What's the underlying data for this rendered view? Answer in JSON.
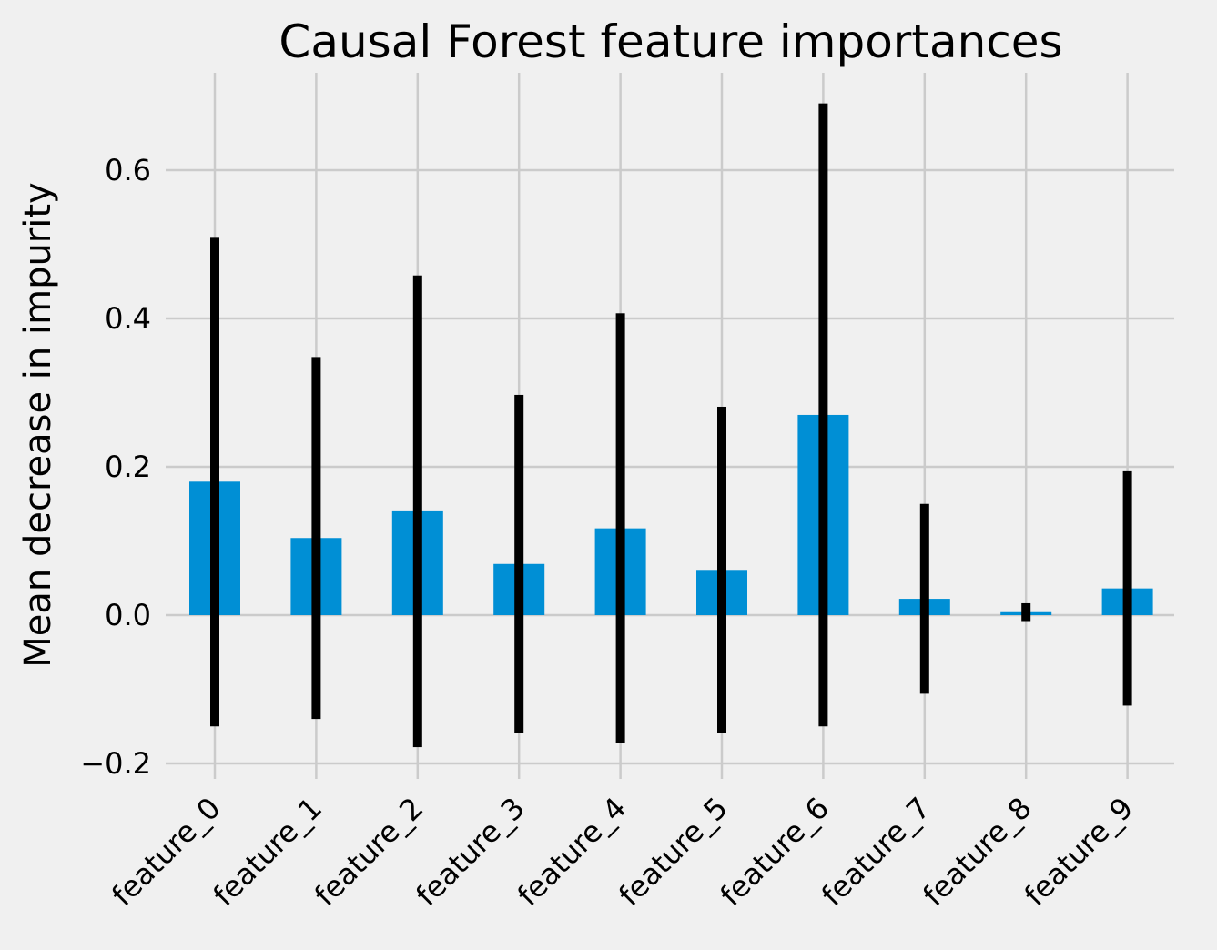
{
  "chart_data": {
    "type": "bar",
    "title": "Causal Forest feature importances",
    "xlabel": "",
    "ylabel": "Mean decrease in impurity",
    "categories": [
      "feature_0",
      "feature_1",
      "feature_2",
      "feature_3",
      "feature_4",
      "feature_5",
      "feature_6",
      "feature_7",
      "feature_8",
      "feature_9"
    ],
    "values": [
      0.18,
      0.104,
      0.14,
      0.069,
      0.117,
      0.061,
      0.27,
      0.022,
      0.004,
      0.036
    ],
    "error": [
      0.33,
      0.244,
      0.318,
      0.228,
      0.29,
      0.22,
      0.42,
      0.128,
      0.012,
      0.158
    ],
    "ylim": [
      -0.22,
      0.72
    ],
    "yticks": [
      -0.2,
      0.0,
      0.2,
      0.4,
      0.6
    ],
    "ytick_labels": [
      "−0.2",
      "0.0",
      "0.2",
      "0.4",
      "0.6"
    ],
    "grid": true,
    "bar_color": "#008fd5",
    "error_color": "#000000",
    "background_color": "#f0f0f0",
    "grid_color": "#cbcbcb"
  }
}
